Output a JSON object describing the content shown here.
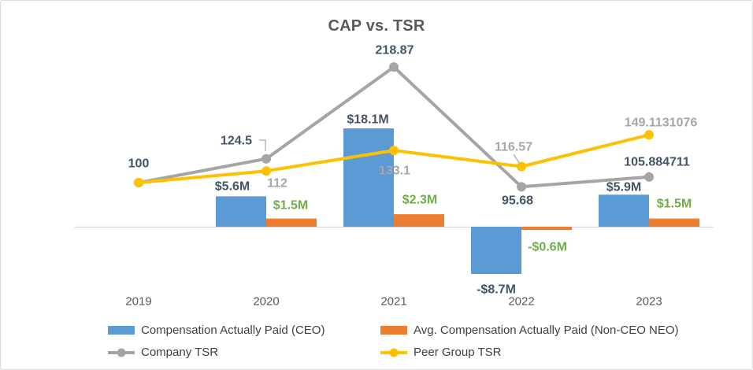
{
  "chart_data": {
    "type": "combo",
    "title": "CAP vs. TSR",
    "categories": [
      "2019",
      "2020",
      "2021",
      "2022",
      "2023"
    ],
    "series": [
      {
        "name": "Compensation Actually Paid (CEO)",
        "type": "bar",
        "color": "#5B9BD5",
        "label_color": "#44546A",
        "unit": "$M",
        "values": [
          null,
          5.6,
          18.1,
          -8.7,
          5.9
        ],
        "labels": [
          "",
          "$5.6M",
          "$18.1M",
          "-$8.7M",
          "$5.9M"
        ]
      },
      {
        "name": "Avg. Compensation Actually Paid (Non-CEO NEO)",
        "type": "bar",
        "color": "#ED7D31",
        "label_color": "#70AD47",
        "unit": "$M",
        "values": [
          null,
          1.5,
          2.3,
          -0.6,
          1.5
        ],
        "labels": [
          "",
          "$1.5M",
          "$2.3M",
          "-$0.6M",
          "$1.5M"
        ]
      },
      {
        "name": "Company TSR",
        "type": "line",
        "color": "#A5A5A5",
        "label_color": "#44546A",
        "values": [
          100,
          124.5,
          218.87,
          95.68,
          105.884711
        ],
        "labels": [
          "100",
          "124.5",
          "218.87",
          "95.68",
          "105.884711"
        ]
      },
      {
        "name": "Peer Group TSR",
        "type": "line",
        "color": "#FFC000",
        "label_color": "#A6A6A6",
        "values": [
          100,
          112,
          133.1,
          116.57,
          149.1131076
        ],
        "labels": [
          "",
          "112",
          "133.1",
          "116.57",
          "149.1131076"
        ]
      }
    ],
    "legend": {
      "position": "bottom",
      "rows": 2
    },
    "axes": {
      "x": {
        "labels_visible": true,
        "line_color": "#D9D9D9",
        "label_color": "#595959"
      },
      "value_axes_visible": false
    },
    "gridlines": false,
    "title_color": "#595959"
  }
}
